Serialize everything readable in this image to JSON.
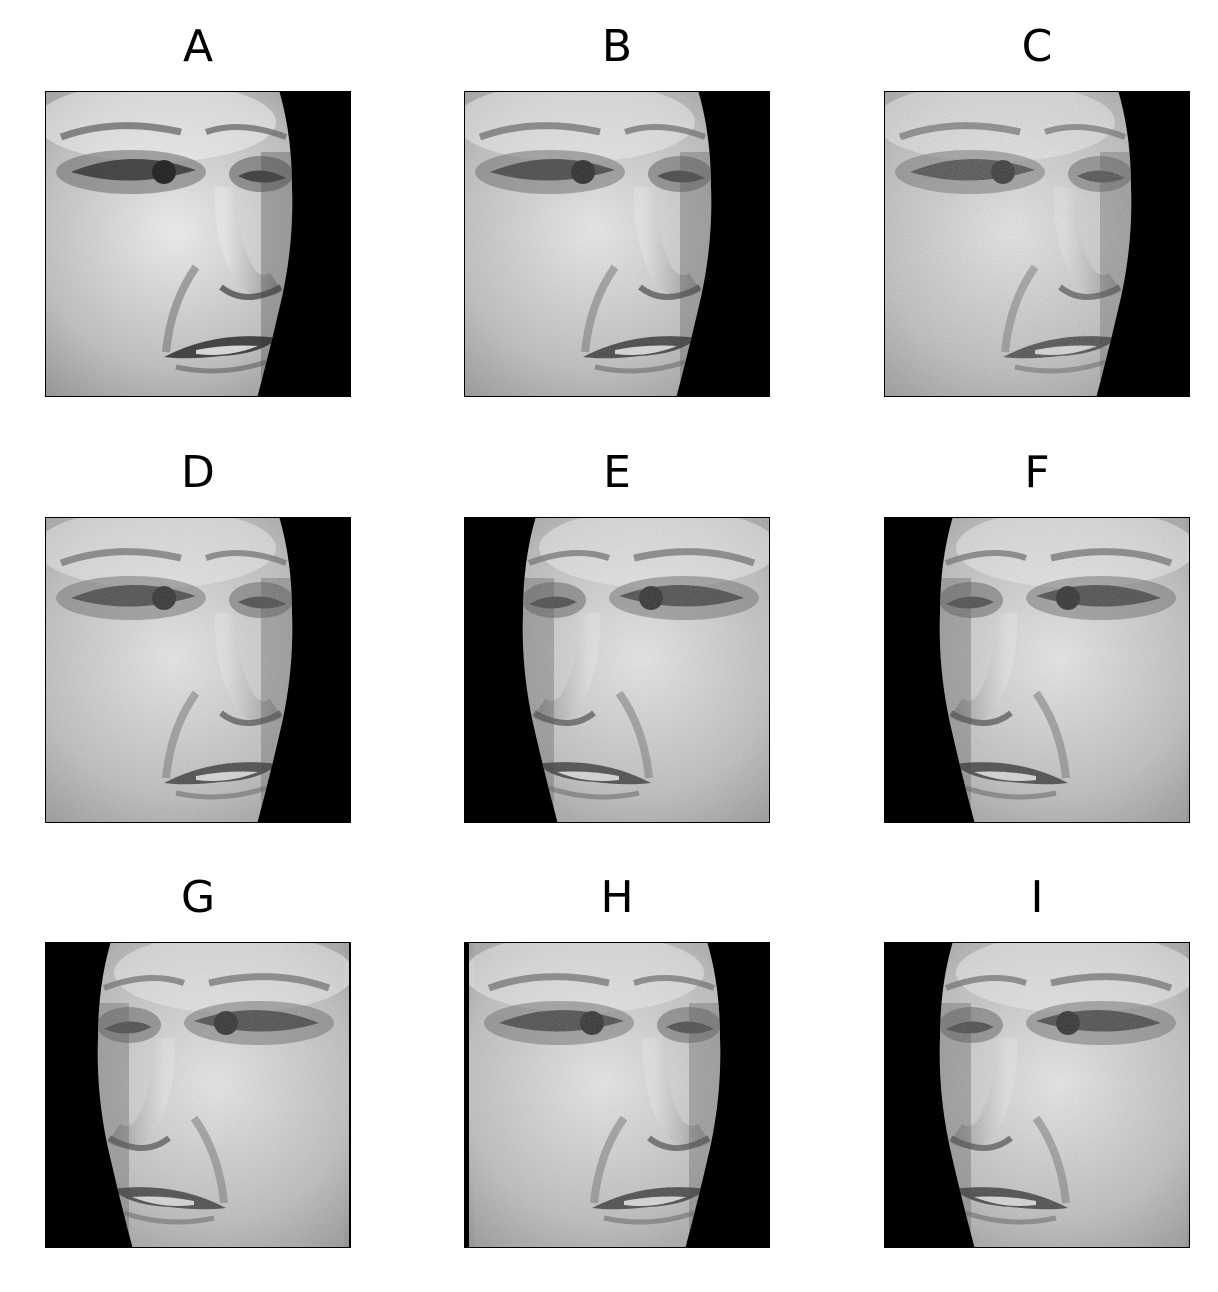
{
  "panels": [
    {
      "label": "A",
      "facing": "right",
      "background": "#000000",
      "noise": 0.0,
      "shift": 0
    },
    {
      "label": "B",
      "facing": "right",
      "background": "#000000",
      "noise": 0.25,
      "shift": 0
    },
    {
      "label": "C",
      "facing": "right",
      "background": "#000000",
      "noise": 0.45,
      "shift": 0
    },
    {
      "label": "D",
      "facing": "right",
      "background": "#000000",
      "noise": 0.35,
      "shift": 0
    },
    {
      "label": "E",
      "facing": "left",
      "background": "#000000",
      "noise": 0.35,
      "shift": 0
    },
    {
      "label": "F",
      "facing": "left",
      "background": "#000000",
      "noise": 0.35,
      "shift": 1
    },
    {
      "label": "G",
      "facing": "left",
      "background": "#000000",
      "noise": 0.35,
      "shift": 2
    },
    {
      "label": "H",
      "facing": "right",
      "background": "#000000",
      "noise": 0.35,
      "shift": 3
    },
    {
      "label": "I",
      "facing": "left",
      "background": "#000000",
      "noise": 0.35,
      "shift": 1
    }
  ],
  "colors": {
    "skin_light": "#e8e8e8",
    "skin_mid": "#bdbdbd",
    "shadow": "#5a5a5a",
    "feature_dark": "#2a2a2a",
    "frame": "#000000"
  }
}
